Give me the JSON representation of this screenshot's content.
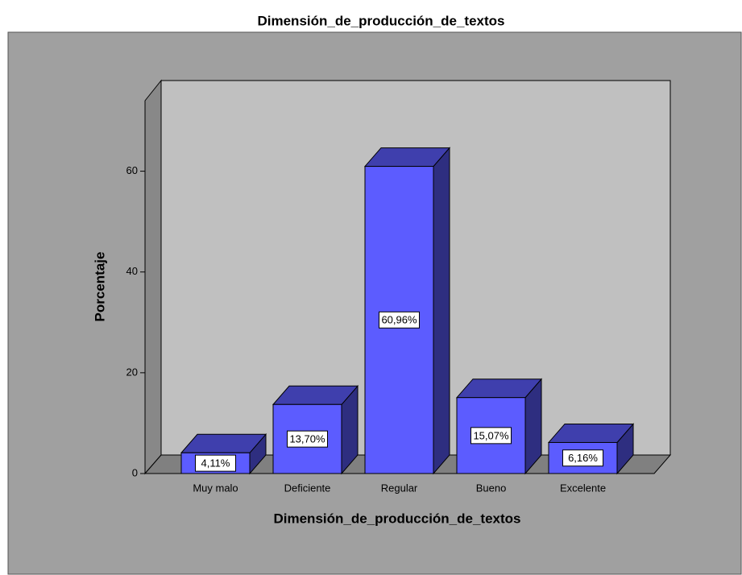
{
  "chart_data": {
    "type": "bar3d",
    "title": "Dimensión_de_producción_de_textos",
    "x_label": "Dimensión_de_producción_de_textos",
    "y_label": "Porcentaje",
    "categories": [
      "Muy malo",
      "Deficiente",
      "Regular",
      "Bueno",
      "Excelente"
    ],
    "values": [
      4.11,
      13.7,
      60.96,
      15.07,
      6.16
    ],
    "value_labels": [
      "4,11%",
      "13,70%",
      "60,96%",
      "15,07%",
      "6,16%"
    ],
    "color": "#5c5cff",
    "ylim": [
      0,
      74
    ],
    "yticks": [
      0,
      20,
      40,
      60
    ]
  }
}
